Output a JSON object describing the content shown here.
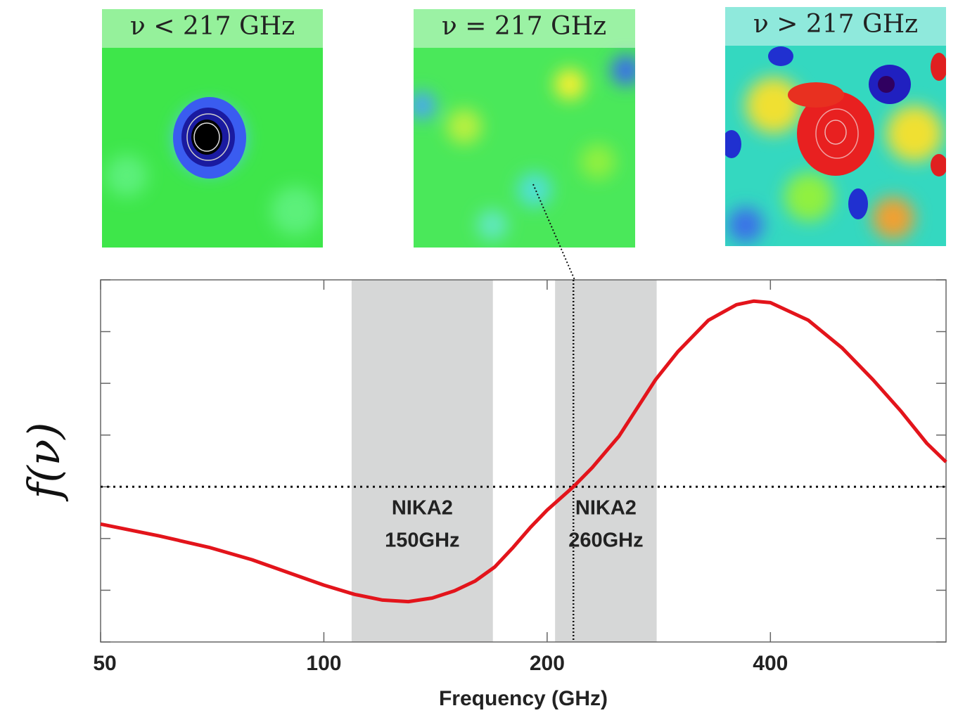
{
  "chart_data": {
    "type": "line",
    "xlabel": "Frequency (GHz)",
    "ylabel": "f(ν)",
    "xscale": "log",
    "xlim": [
      50,
      690
    ],
    "xticks": [
      50,
      100,
      200,
      400
    ],
    "ylim": [
      -3,
      4
    ],
    "yticks": [
      -3,
      -2,
      -1,
      0,
      1,
      2,
      3,
      4
    ],
    "reference_y": 0,
    "reference_x": 217,
    "bands": [
      {
        "range": [
          109,
          169
        ],
        "label": [
          "NIKA2",
          "150GHz"
        ],
        "color": "#d6d7d7"
      },
      {
        "range": [
          205,
          281
        ],
        "label": [
          "NIKA2",
          "260GHz"
        ],
        "color": "#d6d7d7"
      }
    ],
    "series": [
      {
        "color": "#e3141b",
        "x": [
          50,
          60,
          70,
          80,
          90,
          100,
          110,
          120,
          130,
          140,
          150,
          160,
          170,
          180,
          190,
          200,
          217,
          230,
          250,
          280,
          300,
          330,
          360,
          380,
          400,
          450,
          500,
          550,
          600,
          650,
          690
        ],
        "values": [
          -0.72,
          -0.95,
          -1.17,
          -1.41,
          -1.67,
          -1.9,
          -2.08,
          -2.19,
          -2.22,
          -2.15,
          -2.01,
          -1.82,
          -1.55,
          -1.17,
          -0.78,
          -0.45,
          0,
          0.37,
          0.98,
          2.07,
          2.61,
          3.22,
          3.52,
          3.59,
          3.56,
          3.22,
          2.68,
          2.07,
          1.46,
          0.84,
          0.48
        ]
      }
    ]
  },
  "panels": [
    {
      "title": "ν < 217 GHz"
    },
    {
      "title": "ν = 217 GHz"
    },
    {
      "title": "ν > 217 GHz"
    }
  ]
}
